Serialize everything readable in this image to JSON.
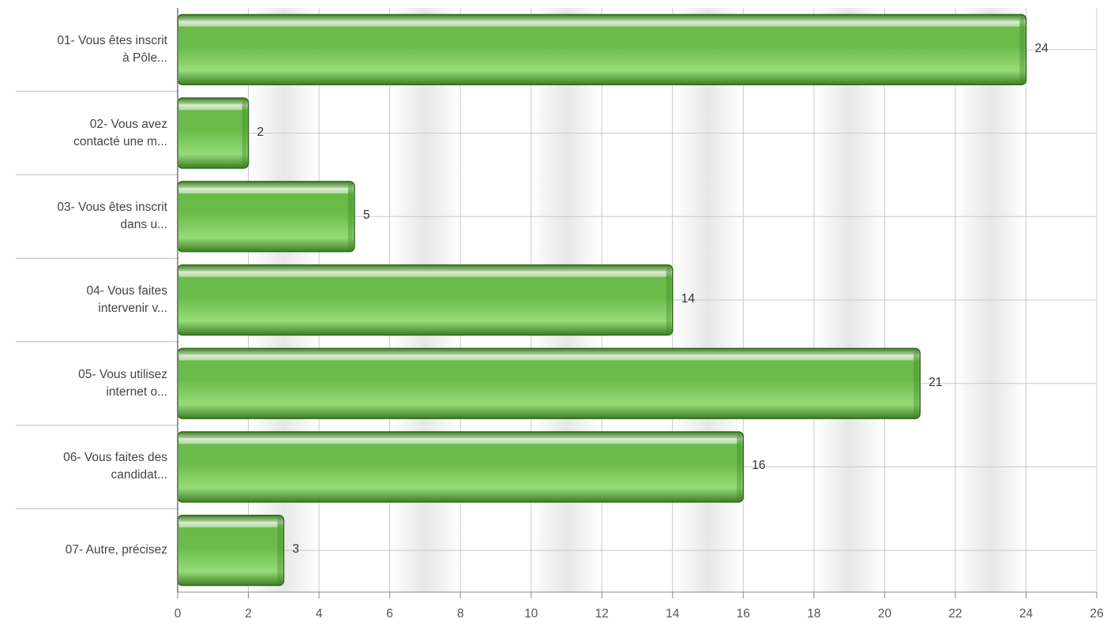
{
  "chart_data": {
    "type": "bar",
    "orientation": "horizontal",
    "categories": [
      [
        "01- Vous êtes inscrit",
        "à Pôle..."
      ],
      [
        "02- Vous avez",
        "contacté une m..."
      ],
      [
        "03- Vous êtes inscrit",
        "dans u..."
      ],
      [
        "04- Vous faites",
        "intervenir v..."
      ],
      [
        "05- Vous utilisez",
        "internet o..."
      ],
      [
        "06- Vous faites des",
        "candidat..."
      ],
      [
        "07- Autre, précisez"
      ]
    ],
    "values": [
      24,
      2,
      5,
      14,
      21,
      16,
      3
    ],
    "xlim": [
      0,
      26
    ],
    "xticks": [
      0,
      2,
      4,
      6,
      8,
      10,
      12,
      14,
      16,
      18,
      20,
      22,
      24,
      26
    ],
    "grid": true,
    "colors": {
      "bar_dark": "#3f7f26",
      "bar_mid": "#6abb4a",
      "bar_light": "#96dc78",
      "bar_edge": "#2f6a1c"
    }
  }
}
